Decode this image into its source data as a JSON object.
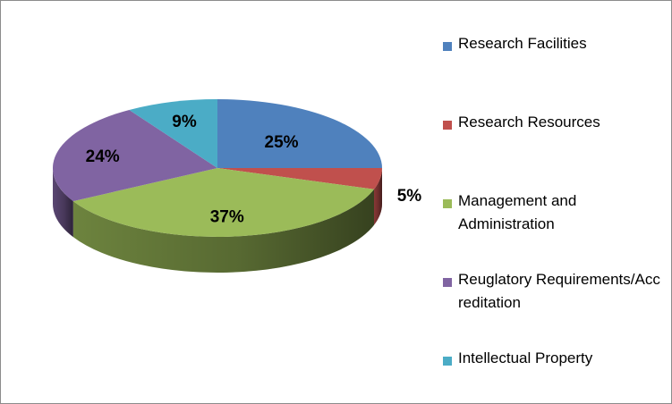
{
  "chart_data": {
    "type": "pie",
    "style": "3d",
    "title": "",
    "categories": [
      "Research Facilities",
      "Research Resources",
      "Management and Administration",
      "Reuglatory Requirements/Accreditation",
      "Intellectual Property"
    ],
    "values": [
      25,
      5,
      37,
      24,
      9
    ],
    "data_labels": [
      "25%",
      "5%",
      "37%",
      "24%",
      "9%"
    ],
    "colors": [
      "#4f81bd",
      "#c0504d",
      "#9bbb59",
      "#8064a2",
      "#4bacc6"
    ],
    "legend_position": "right"
  }
}
